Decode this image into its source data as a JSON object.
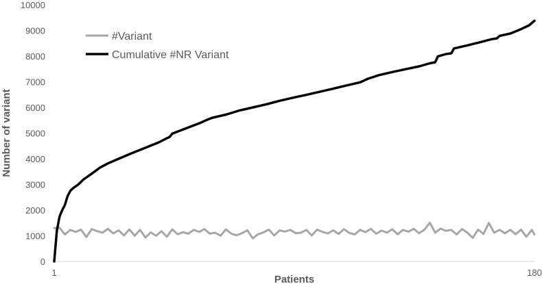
{
  "chart_data": {
    "type": "line",
    "title": "",
    "xlabel": "Patients",
    "ylabel": "Number of variant",
    "xlim": [
      1,
      180
    ],
    "ylim": [
      0,
      10000
    ],
    "x_ticks": [
      "1",
      "180"
    ],
    "y_ticks": [
      0,
      1000,
      2000,
      3000,
      4000,
      5000,
      6000,
      7000,
      8000,
      9000,
      10000
    ],
    "grid": false,
    "legend_position": "top-left",
    "series": [
      {
        "name": "#Variant",
        "color": "#a6a6a6",
        "points": [
          [
            1,
            1300
          ],
          [
            3,
            1310
          ],
          [
            5,
            1050
          ],
          [
            7,
            1230
          ],
          [
            9,
            1150
          ],
          [
            11,
            1240
          ],
          [
            13,
            950
          ],
          [
            15,
            1260
          ],
          [
            17,
            1180
          ],
          [
            19,
            1120
          ],
          [
            21,
            1270
          ],
          [
            23,
            1090
          ],
          [
            25,
            1210
          ],
          [
            27,
            1010
          ],
          [
            29,
            1250
          ],
          [
            31,
            1000
          ],
          [
            33,
            1230
          ],
          [
            35,
            930
          ],
          [
            37,
            1130
          ],
          [
            39,
            1000
          ],
          [
            41,
            1180
          ],
          [
            43,
            960
          ],
          [
            45,
            1250
          ],
          [
            47,
            1060
          ],
          [
            49,
            1140
          ],
          [
            51,
            1080
          ],
          [
            53,
            1230
          ],
          [
            55,
            1150
          ],
          [
            57,
            1260
          ],
          [
            59,
            1080
          ],
          [
            61,
            1120
          ],
          [
            63,
            1000
          ],
          [
            65,
            1250
          ],
          [
            67,
            1080
          ],
          [
            69,
            1020
          ],
          [
            71,
            1100
          ],
          [
            73,
            1210
          ],
          [
            75,
            900
          ],
          [
            77,
            1060
          ],
          [
            79,
            1130
          ],
          [
            81,
            1240
          ],
          [
            83,
            1010
          ],
          [
            85,
            1210
          ],
          [
            87,
            1160
          ],
          [
            89,
            1230
          ],
          [
            91,
            1100
          ],
          [
            93,
            1120
          ],
          [
            95,
            1230
          ],
          [
            97,
            1010
          ],
          [
            99,
            1240
          ],
          [
            101,
            1150
          ],
          [
            103,
            1090
          ],
          [
            105,
            1210
          ],
          [
            107,
            1070
          ],
          [
            109,
            1260
          ],
          [
            111,
            1110
          ],
          [
            113,
            1050
          ],
          [
            115,
            1230
          ],
          [
            117,
            1140
          ],
          [
            119,
            1270
          ],
          [
            121,
            1080
          ],
          [
            123,
            1200
          ],
          [
            125,
            1120
          ],
          [
            127,
            1250
          ],
          [
            129,
            1060
          ],
          [
            131,
            1230
          ],
          [
            133,
            1160
          ],
          [
            135,
            1270
          ],
          [
            137,
            1100
          ],
          [
            139,
            1240
          ],
          [
            141,
            1510
          ],
          [
            143,
            1120
          ],
          [
            145,
            1280
          ],
          [
            147,
            1190
          ],
          [
            149,
            1230
          ],
          [
            151,
            1050
          ],
          [
            153,
            1260
          ],
          [
            155,
            1120
          ],
          [
            157,
            920
          ],
          [
            159,
            1240
          ],
          [
            161,
            1070
          ],
          [
            163,
            1500
          ],
          [
            165,
            1120
          ],
          [
            167,
            1230
          ],
          [
            169,
            1100
          ],
          [
            171,
            1230
          ],
          [
            173,
            1060
          ],
          [
            175,
            1240
          ],
          [
            177,
            960
          ],
          [
            179,
            1230
          ],
          [
            180,
            1050
          ]
        ]
      },
      {
        "name": "Cumulative #NR Variant",
        "color": "#000000",
        "points": [
          [
            1,
            0
          ],
          [
            2,
            1200
          ],
          [
            3,
            1750
          ],
          [
            4,
            2000
          ],
          [
            5,
            2200
          ],
          [
            6,
            2550
          ],
          [
            7,
            2750
          ],
          [
            8,
            2850
          ],
          [
            10,
            3000
          ],
          [
            12,
            3200
          ],
          [
            15,
            3420
          ],
          [
            18,
            3650
          ],
          [
            21,
            3820
          ],
          [
            25,
            4000
          ],
          [
            30,
            4220
          ],
          [
            35,
            4430
          ],
          [
            40,
            4640
          ],
          [
            42,
            4750
          ],
          [
            44,
            4850
          ],
          [
            45,
            4980
          ],
          [
            50,
            5180
          ],
          [
            55,
            5380
          ],
          [
            58,
            5520
          ],
          [
            60,
            5600
          ],
          [
            65,
            5720
          ],
          [
            70,
            5880
          ],
          [
            75,
            6000
          ],
          [
            80,
            6120
          ],
          [
            85,
            6260
          ],
          [
            90,
            6380
          ],
          [
            95,
            6490
          ],
          [
            100,
            6610
          ],
          [
            105,
            6730
          ],
          [
            110,
            6860
          ],
          [
            115,
            6980
          ],
          [
            118,
            7120
          ],
          [
            122,
            7260
          ],
          [
            127,
            7380
          ],
          [
            132,
            7490
          ],
          [
            137,
            7600
          ],
          [
            141,
            7720
          ],
          [
            143,
            7760
          ],
          [
            144,
            7990
          ],
          [
            147,
            8080
          ],
          [
            149,
            8110
          ],
          [
            150,
            8300
          ],
          [
            155,
            8420
          ],
          [
            160,
            8550
          ],
          [
            164,
            8660
          ],
          [
            166,
            8690
          ],
          [
            167,
            8790
          ],
          [
            171,
            8880
          ],
          [
            175,
            9050
          ],
          [
            178,
            9200
          ],
          [
            180,
            9380
          ]
        ]
      }
    ]
  }
}
